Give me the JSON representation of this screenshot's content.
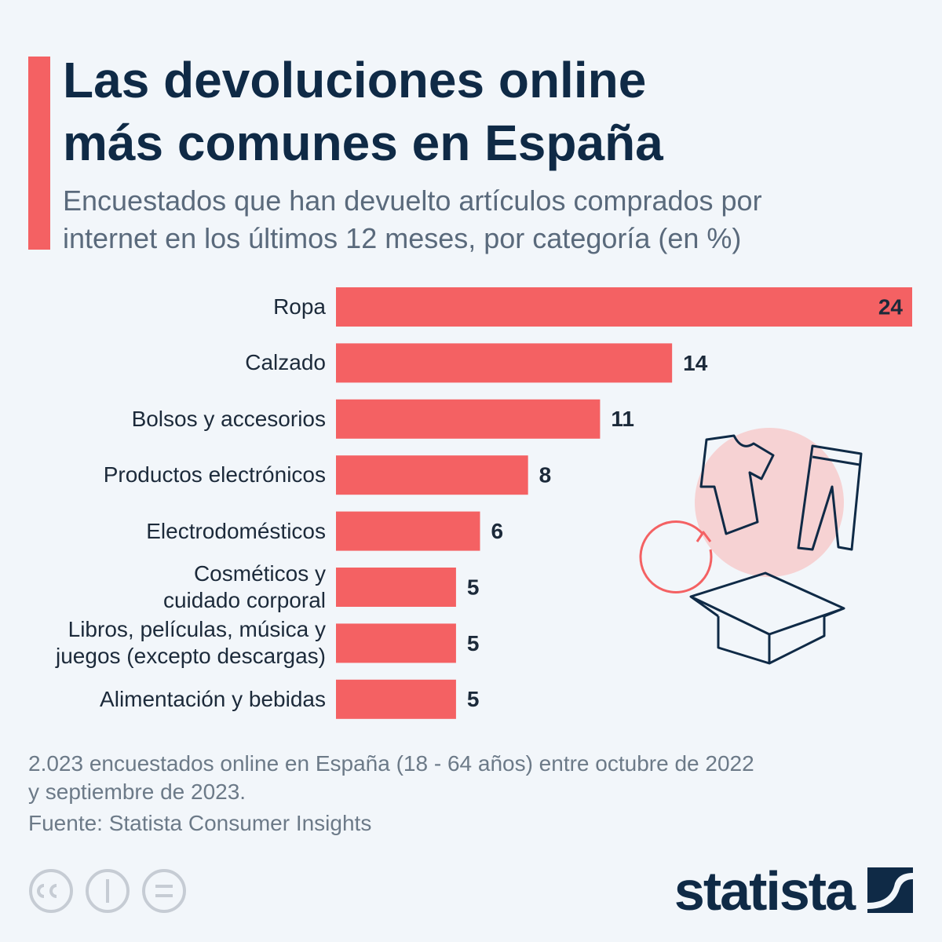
{
  "chart_data": {
    "type": "bar",
    "orientation": "horizontal",
    "title": "Las devoluciones online\nmás comunes en España",
    "subtitle": "Encuestados que han devuelto artículos comprados por\ninternet en los últimos 12 meses, por categoría (en %)",
    "categories": [
      "Ropa",
      "Calzado",
      "Bolsos y accesorios",
      "Productos electrónicos",
      "Electrodomésticos",
      "Cosméticos y\ncuidado corporal",
      "Libros, películas, música y\njuegos (excepto descargas)",
      "Alimentación y bebidas"
    ],
    "values": [
      24,
      14,
      11,
      8,
      6,
      5,
      5,
      5
    ],
    "color": "#f46163",
    "note": "2.023 encuestados online en España (18 - 64 años) entre octubre de 2022\ny septiembre de 2023.",
    "source": "Fuente: Statista Consumer Insights",
    "brand": "statista"
  }
}
